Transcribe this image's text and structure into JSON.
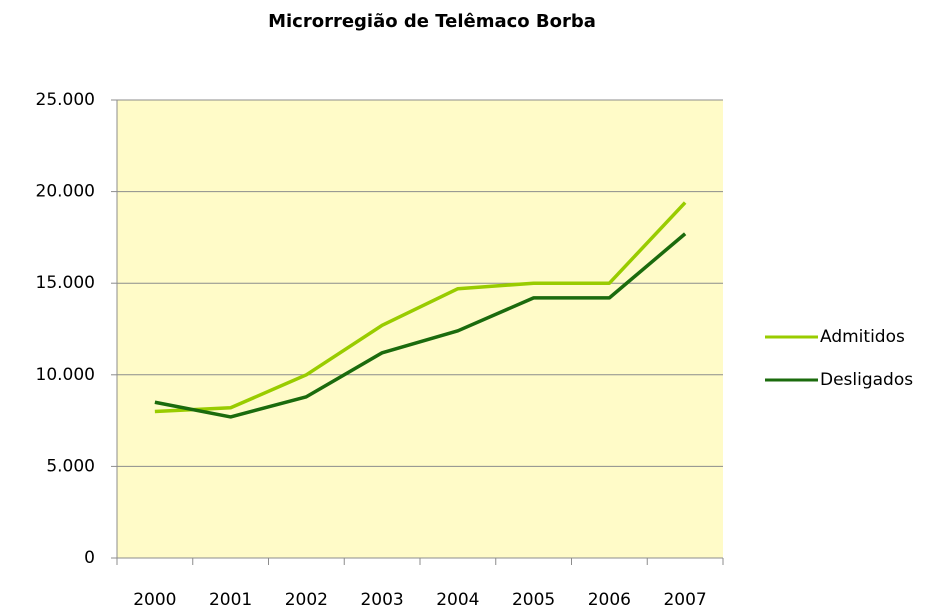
{
  "chart_data": {
    "type": "line",
    "title": "Microrregião de Telêmaco Borba",
    "categories": [
      "2000",
      "2001",
      "2002",
      "2003",
      "2004",
      "2005",
      "2006",
      "2007"
    ],
    "series": [
      {
        "name": "Admitidos",
        "color": "#99cc00",
        "values": [
          8000,
          8200,
          10000,
          12700,
          14700,
          15000,
          15000,
          19400
        ]
      },
      {
        "name": "Desligados",
        "color": "#1b6b0d",
        "values": [
          8500,
          7700,
          8800,
          11200,
          12400,
          14200,
          14200,
          17700
        ]
      }
    ],
    "ylim": [
      0,
      25000
    ],
    "yticks": [
      0,
      {
        "value": 5000,
        "label": "5.000"
      },
      {
        "value": 10000,
        "label": "10.000"
      },
      {
        "value": 15000,
        "label": "15.000"
      },
      {
        "value": 20000,
        "label": "20.000"
      },
      {
        "value": 25000,
        "label": "25.000"
      }
    ],
    "grid": true,
    "legend": "right",
    "plot_background": "#fffbc8"
  }
}
